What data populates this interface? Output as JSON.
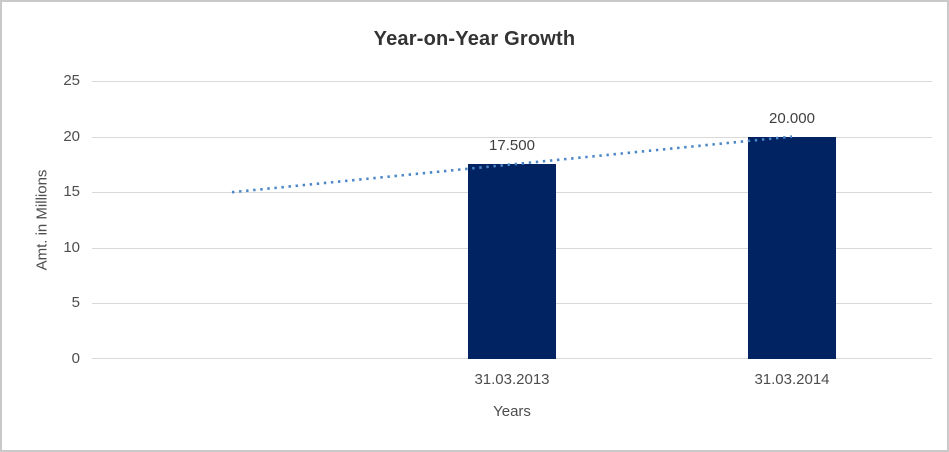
{
  "chart_data": {
    "type": "bar",
    "title": "Year-on-Year Growth",
    "xlabel": "Years",
    "ylabel": "Amt. in Millions",
    "categories": [
      "31.03.2013",
      "31.03.2014"
    ],
    "values": [
      17.5,
      20.0
    ],
    "data_labels": [
      "17.500",
      "20.000"
    ],
    "ylim": [
      0,
      25
    ],
    "yticks": [
      0,
      5,
      10,
      15,
      20,
      25
    ],
    "ytick_labels_top_to_bottom": [
      "25",
      "20",
      "15",
      "10",
      "5",
      "0"
    ],
    "grid": "horizontal",
    "legend": "none",
    "x_slots": 3,
    "bar_x": [
      1,
      2
    ],
    "trendline": {
      "type": "linear",
      "style": "dotted",
      "points": [
        [
          0,
          15.0
        ],
        [
          2,
          20.0
        ]
      ],
      "note": "dotted linear trendline extending one category before first bar"
    }
  },
  "colors": {
    "bar": "#022362",
    "trendline": "#4a86c8",
    "gridline": "#d9d9d9",
    "frame_border": "#c9c9c9",
    "title_text": "#333333",
    "axis_text": "#4d4d4d",
    "data_label_text": "#3f3f3f",
    "background": "#ffffff"
  }
}
